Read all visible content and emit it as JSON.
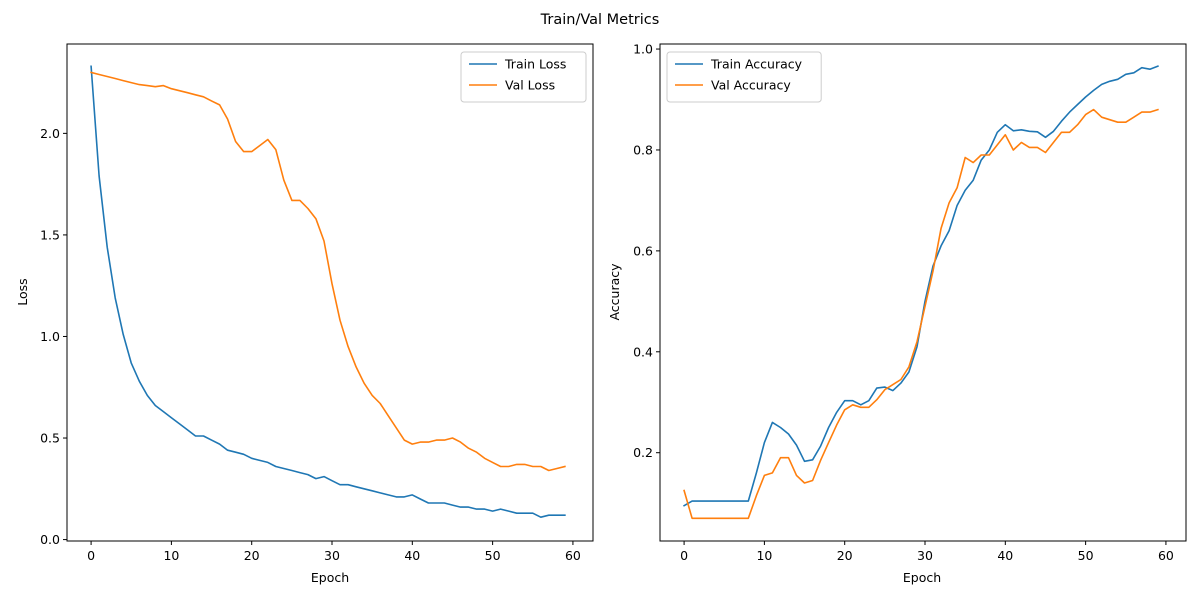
{
  "figure": {
    "suptitle": "Train/Val Metrics"
  },
  "colors": {
    "train": "#1f77b4",
    "val": "#ff7f0e"
  },
  "chart_data": [
    {
      "type": "line",
      "xlabel": "Epoch",
      "ylabel": "Loss",
      "xlim": [
        -3,
        62.5
      ],
      "ylim": [
        -0.007,
        2.44
      ],
      "xticks": [
        0,
        10,
        20,
        30,
        40,
        50,
        60
      ],
      "yticks": [
        0.0,
        0.5,
        1.0,
        1.5,
        2.0
      ],
      "ytick_labels": [
        "0.0",
        "0.5",
        "1.0",
        "1.5",
        "2.0"
      ],
      "legend": "top-right",
      "grid": false,
      "x": [
        0,
        1,
        2,
        3,
        4,
        5,
        6,
        7,
        8,
        9,
        10,
        11,
        12,
        13,
        14,
        15,
        16,
        17,
        18,
        19,
        20,
        21,
        22,
        23,
        24,
        25,
        26,
        27,
        28,
        29,
        30,
        31,
        32,
        33,
        34,
        35,
        36,
        37,
        38,
        39,
        40,
        41,
        42,
        43,
        44,
        45,
        46,
        47,
        48,
        49,
        50,
        51,
        52,
        53,
        54,
        55,
        56,
        57,
        58,
        59
      ],
      "series": [
        {
          "name": "Train Loss",
          "color": "#1f77b4",
          "values": [
            2.33,
            1.79,
            1.44,
            1.19,
            1.01,
            0.87,
            0.78,
            0.71,
            0.66,
            0.63,
            0.6,
            0.57,
            0.54,
            0.51,
            0.51,
            0.49,
            0.47,
            0.44,
            0.43,
            0.42,
            0.4,
            0.39,
            0.38,
            0.36,
            0.35,
            0.34,
            0.33,
            0.32,
            0.3,
            0.31,
            0.29,
            0.27,
            0.27,
            0.26,
            0.25,
            0.24,
            0.23,
            0.22,
            0.21,
            0.21,
            0.22,
            0.2,
            0.18,
            0.18,
            0.18,
            0.17,
            0.16,
            0.16,
            0.15,
            0.15,
            0.14,
            0.15,
            0.14,
            0.13,
            0.13,
            0.13,
            0.11,
            0.12,
            0.12,
            0.12
          ]
        },
        {
          "name": "Val Loss",
          "color": "#ff7f0e",
          "values": [
            2.3,
            2.29,
            2.28,
            2.27,
            2.26,
            2.25,
            2.24,
            2.235,
            2.23,
            2.235,
            2.22,
            2.21,
            2.2,
            2.19,
            2.18,
            2.16,
            2.14,
            2.07,
            1.96,
            1.91,
            1.91,
            1.94,
            1.97,
            1.92,
            1.77,
            1.67,
            1.67,
            1.63,
            1.58,
            1.47,
            1.26,
            1.08,
            0.95,
            0.85,
            0.77,
            0.71,
            0.67,
            0.61,
            0.55,
            0.49,
            0.47,
            0.48,
            0.48,
            0.49,
            0.49,
            0.5,
            0.48,
            0.45,
            0.43,
            0.4,
            0.38,
            0.36,
            0.36,
            0.37,
            0.37,
            0.36,
            0.36,
            0.34,
            0.35,
            0.36
          ]
        }
      ]
    },
    {
      "type": "line",
      "xlabel": "Epoch",
      "ylabel": "Accuracy",
      "xlim": [
        -3,
        62.5
      ],
      "ylim": [
        0.025,
        1.01
      ],
      "xticks": [
        0,
        10,
        20,
        30,
        40,
        50,
        60
      ],
      "yticks": [
        0.2,
        0.4,
        0.6,
        0.8,
        1.0
      ],
      "ytick_labels": [
        "0.2",
        "0.4",
        "0.6",
        "0.8",
        "1.0"
      ],
      "legend": "top-left",
      "grid": false,
      "x": [
        0,
        1,
        2,
        3,
        4,
        5,
        6,
        7,
        8,
        9,
        10,
        11,
        12,
        13,
        14,
        15,
        16,
        17,
        18,
        19,
        20,
        21,
        22,
        23,
        24,
        25,
        26,
        27,
        28,
        29,
        30,
        31,
        32,
        33,
        34,
        35,
        36,
        37,
        38,
        39,
        40,
        41,
        42,
        43,
        44,
        45,
        46,
        47,
        48,
        49,
        50,
        51,
        52,
        53,
        54,
        55,
        56,
        57,
        58,
        59
      ],
      "series": [
        {
          "name": "Train Accuracy",
          "color": "#1f77b4",
          "values": [
            0.095,
            0.104,
            0.104,
            0.104,
            0.104,
            0.104,
            0.104,
            0.104,
            0.104,
            0.16,
            0.22,
            0.26,
            0.25,
            0.237,
            0.215,
            0.183,
            0.186,
            0.213,
            0.25,
            0.28,
            0.303,
            0.303,
            0.295,
            0.303,
            0.328,
            0.33,
            0.323,
            0.338,
            0.36,
            0.41,
            0.5,
            0.57,
            0.61,
            0.64,
            0.69,
            0.72,
            0.74,
            0.78,
            0.8,
            0.835,
            0.85,
            0.838,
            0.84,
            0.837,
            0.836,
            0.825,
            0.837,
            0.857,
            0.875,
            0.89,
            0.905,
            0.918,
            0.93,
            0.936,
            0.94,
            0.95,
            0.953,
            0.963,
            0.96,
            0.966
          ]
        },
        {
          "name": "Val Accuracy",
          "color": "#ff7f0e",
          "values": [
            0.125,
            0.07,
            0.07,
            0.07,
            0.07,
            0.07,
            0.07,
            0.07,
            0.07,
            0.115,
            0.155,
            0.16,
            0.19,
            0.19,
            0.155,
            0.14,
            0.145,
            0.185,
            0.22,
            0.255,
            0.285,
            0.295,
            0.29,
            0.29,
            0.305,
            0.325,
            0.335,
            0.345,
            0.37,
            0.42,
            0.49,
            0.56,
            0.645,
            0.695,
            0.725,
            0.785,
            0.775,
            0.79,
            0.79,
            0.81,
            0.83,
            0.8,
            0.815,
            0.805,
            0.805,
            0.795,
            0.815,
            0.835,
            0.835,
            0.85,
            0.87,
            0.88,
            0.865,
            0.86,
            0.855,
            0.855,
            0.865,
            0.875,
            0.875,
            0.88
          ]
        }
      ]
    }
  ]
}
